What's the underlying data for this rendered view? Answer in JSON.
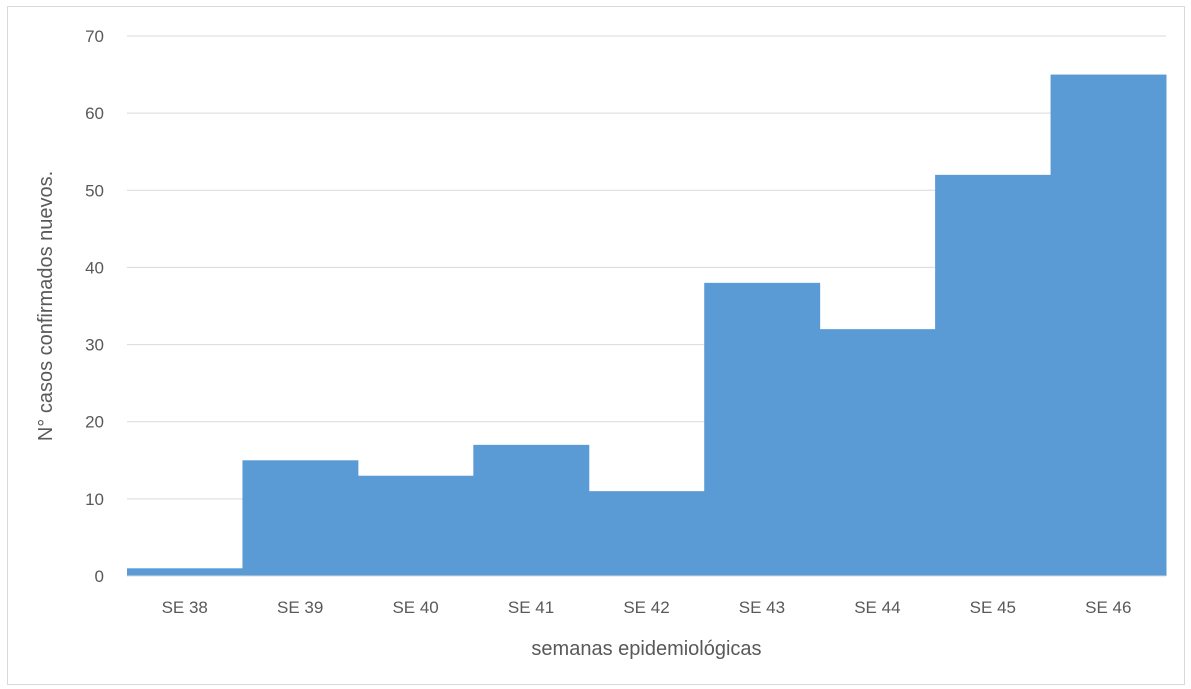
{
  "chart_data": {
    "type": "bar",
    "title": "",
    "xlabel": "semanas epidemiológicas",
    "ylabel": "N° casos confirmados nuevos.",
    "categories": [
      "SE 38",
      "SE 39",
      "SE 40",
      "SE 41",
      "SE 42",
      "SE 43",
      "SE 44",
      "SE 45",
      "SE 46"
    ],
    "values": [
      1,
      15,
      13,
      17,
      11,
      38,
      32,
      52,
      65
    ],
    "ylim": [
      0,
      70
    ],
    "yticks": [
      0,
      10,
      20,
      30,
      40,
      50,
      60,
      70
    ],
    "grid": true,
    "legend": "none",
    "bar_gap": 0,
    "colors": {
      "bar": "#5b9bd5",
      "grid": "#d9d9d9",
      "text": "#595959",
      "axis": "#d9d9d9"
    }
  }
}
